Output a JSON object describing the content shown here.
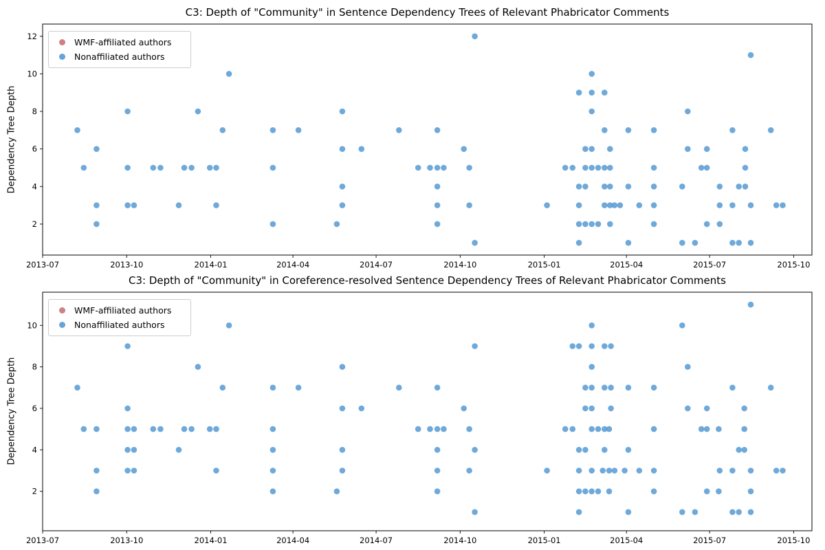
{
  "figure_background": "#ffffff",
  "axis_color": "#000000",
  "chart_data": [
    {
      "type": "scatter",
      "title": "C3: Depth of \"Community\" in Sentence Dependency Trees of Relevant Phabricator Comments",
      "xlabel": "",
      "ylabel": "Dependency Tree Depth",
      "legend_position": "upper left",
      "grid": false,
      "x_tick_labels": [
        "2013-07",
        "2013-10",
        "2014-01",
        "2014-04",
        "2014-07",
        "2014-10",
        "2015-01",
        "2015-04",
        "2015-07",
        "2015-10"
      ],
      "x_tick_dates": [
        "2013-07-01",
        "2013-10-01",
        "2014-01-01",
        "2014-04-01",
        "2014-07-01",
        "2014-10-01",
        "2015-01-01",
        "2015-04-01",
        "2015-07-01",
        "2015-10-01"
      ],
      "xlim_dates": [
        "2013-07-01",
        "2015-10-21"
      ],
      "y_ticks": [
        2,
        4,
        6,
        8,
        10,
        12
      ],
      "ylim": [
        0.35,
        12.65
      ],
      "series": [
        {
          "name": "WMF-affiliated authors",
          "color": "#c66a6c",
          "points": []
        },
        {
          "name": "Nonaffiliated authors",
          "color": "#4b94d0",
          "points": [
            [
              "2013-08-08",
              7
            ],
            [
              "2013-08-15",
              5
            ],
            [
              "2013-08-29",
              6
            ],
            [
              "2013-08-29",
              3
            ],
            [
              "2013-08-29",
              2
            ],
            [
              "2013-10-02",
              8
            ],
            [
              "2013-10-02",
              5
            ],
            [
              "2013-10-02",
              3
            ],
            [
              "2013-10-09",
              3
            ],
            [
              "2013-10-30",
              5
            ],
            [
              "2013-11-07",
              5
            ],
            [
              "2013-11-27",
              3
            ],
            [
              "2013-12-03",
              5
            ],
            [
              "2013-12-11",
              5
            ],
            [
              "2013-12-18",
              8
            ],
            [
              "2013-12-31",
              5
            ],
            [
              "2014-01-07",
              5
            ],
            [
              "2014-01-07",
              3
            ],
            [
              "2014-01-14",
              7
            ],
            [
              "2014-01-21",
              10
            ],
            [
              "2014-03-10",
              7
            ],
            [
              "2014-03-10",
              5
            ],
            [
              "2014-03-10",
              2
            ],
            [
              "2014-04-07",
              7
            ],
            [
              "2014-05-19",
              2
            ],
            [
              "2014-05-25",
              8
            ],
            [
              "2014-05-25",
              6
            ],
            [
              "2014-05-25",
              4
            ],
            [
              "2014-05-25",
              3
            ],
            [
              "2014-06-15",
              6
            ],
            [
              "2014-07-26",
              7
            ],
            [
              "2014-08-16",
              5
            ],
            [
              "2014-08-29",
              5
            ],
            [
              "2014-09-06",
              7
            ],
            [
              "2014-09-06",
              5
            ],
            [
              "2014-09-06",
              4
            ],
            [
              "2014-09-06",
              3
            ],
            [
              "2014-09-06",
              2
            ],
            [
              "2014-09-13",
              5
            ],
            [
              "2014-10-05",
              6
            ],
            [
              "2014-10-11",
              5
            ],
            [
              "2014-10-11",
              3
            ],
            [
              "2014-10-17",
              12
            ],
            [
              "2014-10-17",
              1
            ],
            [
              "2015-01-04",
              3
            ],
            [
              "2015-01-24",
              5
            ],
            [
              "2015-02-01",
              5
            ],
            [
              "2015-02-08",
              9
            ],
            [
              "2015-02-08",
              4
            ],
            [
              "2015-02-08",
              3
            ],
            [
              "2015-02-08",
              2
            ],
            [
              "2015-02-08",
              1
            ],
            [
              "2015-02-15",
              6
            ],
            [
              "2015-02-15",
              5
            ],
            [
              "2015-02-15",
              4
            ],
            [
              "2015-02-15",
              2
            ],
            [
              "2015-02-22",
              10
            ],
            [
              "2015-02-22",
              9
            ],
            [
              "2015-02-22",
              8
            ],
            [
              "2015-02-22",
              6
            ],
            [
              "2015-02-22",
              5
            ],
            [
              "2015-02-22",
              2
            ],
            [
              "2015-03-01",
              5
            ],
            [
              "2015-03-01",
              2
            ],
            [
              "2015-03-08",
              9
            ],
            [
              "2015-03-08",
              7
            ],
            [
              "2015-03-08",
              5
            ],
            [
              "2015-03-08",
              4
            ],
            [
              "2015-03-08",
              3
            ],
            [
              "2015-03-14",
              6
            ],
            [
              "2015-03-14",
              5
            ],
            [
              "2015-03-14",
              4
            ],
            [
              "2015-03-14",
              3
            ],
            [
              "2015-03-14",
              2
            ],
            [
              "2015-03-19",
              3
            ],
            [
              "2015-03-25",
              3
            ],
            [
              "2015-04-03",
              7
            ],
            [
              "2015-04-03",
              4
            ],
            [
              "2015-04-03",
              1
            ],
            [
              "2015-04-15",
              3
            ],
            [
              "2015-05-01",
              7
            ],
            [
              "2015-05-01",
              5
            ],
            [
              "2015-05-01",
              4
            ],
            [
              "2015-05-01",
              3
            ],
            [
              "2015-05-01",
              2
            ],
            [
              "2015-06-01",
              4
            ],
            [
              "2015-06-01",
              1
            ],
            [
              "2015-06-07",
              8
            ],
            [
              "2015-06-07",
              6
            ],
            [
              "2015-06-15",
              1
            ],
            [
              "2015-06-22",
              5
            ],
            [
              "2015-06-28",
              6
            ],
            [
              "2015-06-28",
              5
            ],
            [
              "2015-06-28",
              2
            ],
            [
              "2015-07-12",
              4
            ],
            [
              "2015-07-12",
              3
            ],
            [
              "2015-07-12",
              2
            ],
            [
              "2015-07-26",
              7
            ],
            [
              "2015-07-26",
              3
            ],
            [
              "2015-07-26",
              1
            ],
            [
              "2015-08-02",
              4
            ],
            [
              "2015-08-02",
              1
            ],
            [
              "2015-08-09",
              6
            ],
            [
              "2015-08-09",
              5
            ],
            [
              "2015-08-09",
              4
            ],
            [
              "2015-08-15",
              11
            ],
            [
              "2015-08-15",
              3
            ],
            [
              "2015-08-15",
              1
            ],
            [
              "2015-09-06",
              7
            ],
            [
              "2015-09-12",
              3
            ],
            [
              "2015-09-19",
              3
            ]
          ]
        }
      ]
    },
    {
      "type": "scatter",
      "title": "C3: Depth of \"Community\" in Coreference-resolved Sentence Dependency Trees of Relevant Phabricator Comments",
      "xlabel": "",
      "ylabel": "Dependency Tree Depth",
      "legend_position": "upper left",
      "grid": false,
      "x_tick_labels": [
        "2013-07",
        "2013-10",
        "2014-01",
        "2014-04",
        "2014-07",
        "2014-10",
        "2015-01",
        "2015-04",
        "2015-07",
        "2015-10"
      ],
      "x_tick_dates": [
        "2013-07-01",
        "2013-10-01",
        "2014-01-01",
        "2014-04-01",
        "2014-07-01",
        "2014-10-01",
        "2015-01-01",
        "2015-04-01",
        "2015-07-01",
        "2015-10-01"
      ],
      "xlim_dates": [
        "2013-07-01",
        "2015-10-21"
      ],
      "y_ticks": [
        2,
        4,
        6,
        8,
        10
      ],
      "ylim": [
        0.1,
        11.6
      ],
      "series": [
        {
          "name": "WMF-affiliated authors",
          "color": "#c66a6c",
          "points": []
        },
        {
          "name": "Nonaffiliated authors",
          "color": "#4b94d0",
          "points": [
            [
              "2013-08-08",
              7
            ],
            [
              "2013-08-15",
              5
            ],
            [
              "2013-08-29",
              5
            ],
            [
              "2013-08-29",
              3
            ],
            [
              "2013-08-29",
              2
            ],
            [
              "2013-10-02",
              9
            ],
            [
              "2013-10-02",
              6
            ],
            [
              "2013-10-02",
              5
            ],
            [
              "2013-10-02",
              4
            ],
            [
              "2013-10-02",
              3
            ],
            [
              "2013-10-09",
              5
            ],
            [
              "2013-10-09",
              4
            ],
            [
              "2013-10-09",
              3
            ],
            [
              "2013-10-30",
              5
            ],
            [
              "2013-11-07",
              5
            ],
            [
              "2013-11-27",
              4
            ],
            [
              "2013-12-03",
              5
            ],
            [
              "2013-12-11",
              5
            ],
            [
              "2013-12-18",
              8
            ],
            [
              "2013-12-31",
              5
            ],
            [
              "2014-01-07",
              5
            ],
            [
              "2014-01-07",
              3
            ],
            [
              "2014-01-14",
              7
            ],
            [
              "2014-01-21",
              10
            ],
            [
              "2014-03-10",
              7
            ],
            [
              "2014-03-10",
              5
            ],
            [
              "2014-03-10",
              4
            ],
            [
              "2014-03-10",
              3
            ],
            [
              "2014-03-10",
              2
            ],
            [
              "2014-04-07",
              7
            ],
            [
              "2014-05-19",
              2
            ],
            [
              "2014-05-25",
              8
            ],
            [
              "2014-05-25",
              6
            ],
            [
              "2014-05-25",
              4
            ],
            [
              "2014-05-25",
              3
            ],
            [
              "2014-06-15",
              6
            ],
            [
              "2014-07-26",
              7
            ],
            [
              "2014-08-16",
              5
            ],
            [
              "2014-08-29",
              5
            ],
            [
              "2014-09-06",
              7
            ],
            [
              "2014-09-06",
              5
            ],
            [
              "2014-09-06",
              4
            ],
            [
              "2014-09-06",
              3
            ],
            [
              "2014-09-06",
              2
            ],
            [
              "2014-09-13",
              5
            ],
            [
              "2014-10-05",
              6
            ],
            [
              "2014-10-11",
              5
            ],
            [
              "2014-10-11",
              3
            ],
            [
              "2014-10-17",
              9
            ],
            [
              "2014-10-17",
              4
            ],
            [
              "2014-10-17",
              1
            ],
            [
              "2015-01-04",
              3
            ],
            [
              "2015-01-24",
              5
            ],
            [
              "2015-02-01",
              5
            ],
            [
              "2015-02-01",
              9
            ],
            [
              "2015-02-08",
              9
            ],
            [
              "2015-02-08",
              4
            ],
            [
              "2015-02-08",
              3
            ],
            [
              "2015-02-08",
              2
            ],
            [
              "2015-02-08",
              1
            ],
            [
              "2015-02-15",
              7
            ],
            [
              "2015-02-15",
              6
            ],
            [
              "2015-02-15",
              4
            ],
            [
              "2015-02-15",
              2
            ],
            [
              "2015-02-22",
              10
            ],
            [
              "2015-02-22",
              9
            ],
            [
              "2015-02-22",
              8
            ],
            [
              "2015-02-22",
              7
            ],
            [
              "2015-02-22",
              6
            ],
            [
              "2015-02-22",
              5
            ],
            [
              "2015-02-22",
              3
            ],
            [
              "2015-02-22",
              2
            ],
            [
              "2015-03-01",
              5
            ],
            [
              "2015-03-01",
              2
            ],
            [
              "2015-03-06",
              3
            ],
            [
              "2015-03-08",
              9
            ],
            [
              "2015-03-08",
              7
            ],
            [
              "2015-03-08",
              5
            ],
            [
              "2015-03-08",
              4
            ],
            [
              "2015-03-13",
              5
            ],
            [
              "2015-03-13",
              3
            ],
            [
              "2015-03-13",
              2
            ],
            [
              "2015-03-15",
              9
            ],
            [
              "2015-03-15",
              7
            ],
            [
              "2015-03-15",
              6
            ],
            [
              "2015-03-19",
              3
            ],
            [
              "2015-03-30",
              3
            ],
            [
              "2015-04-03",
              7
            ],
            [
              "2015-04-03",
              4
            ],
            [
              "2015-04-03",
              1
            ],
            [
              "2015-04-15",
              3
            ],
            [
              "2015-05-01",
              7
            ],
            [
              "2015-05-01",
              5
            ],
            [
              "2015-05-01",
              3
            ],
            [
              "2015-05-01",
              2
            ],
            [
              "2015-06-01",
              10
            ],
            [
              "2015-06-01",
              1
            ],
            [
              "2015-06-07",
              8
            ],
            [
              "2015-06-07",
              6
            ],
            [
              "2015-06-15",
              1
            ],
            [
              "2015-06-22",
              5
            ],
            [
              "2015-06-28",
              6
            ],
            [
              "2015-06-28",
              5
            ],
            [
              "2015-06-28",
              2
            ],
            [
              "2015-07-11",
              5
            ],
            [
              "2015-07-11",
              2
            ],
            [
              "2015-07-12",
              3
            ],
            [
              "2015-07-26",
              7
            ],
            [
              "2015-07-26",
              3
            ],
            [
              "2015-07-26",
              1
            ],
            [
              "2015-08-02",
              4
            ],
            [
              "2015-08-02",
              1
            ],
            [
              "2015-08-08",
              6
            ],
            [
              "2015-08-08",
              5
            ],
            [
              "2015-08-08",
              4
            ],
            [
              "2015-08-15",
              11
            ],
            [
              "2015-08-15",
              3
            ],
            [
              "2015-08-15",
              2
            ],
            [
              "2015-08-15",
              1
            ],
            [
              "2015-09-06",
              7
            ],
            [
              "2015-09-12",
              3
            ],
            [
              "2015-09-19",
              3
            ]
          ]
        }
      ]
    }
  ]
}
